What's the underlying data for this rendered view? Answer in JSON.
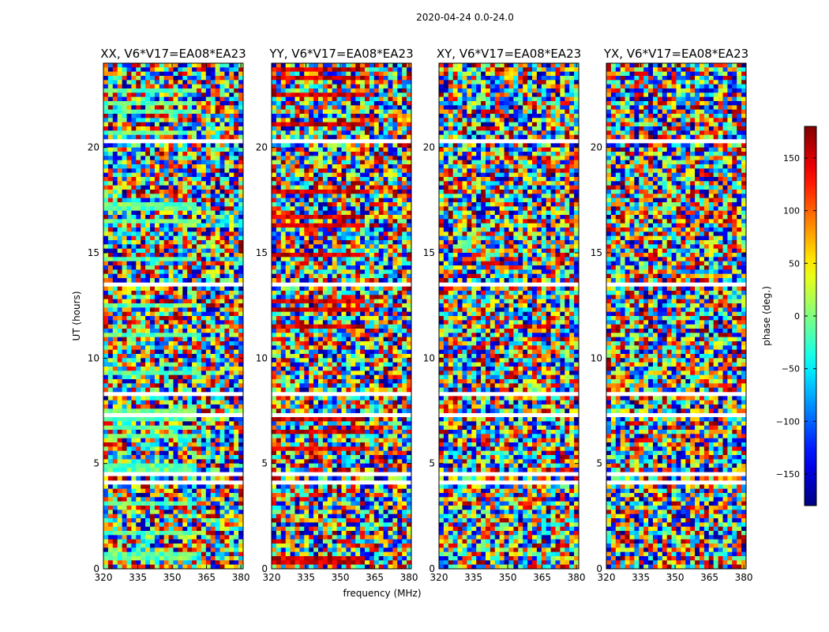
{
  "chart_data": {
    "type": "heatmap",
    "suptitle": "2020-04-24 0.0-24.0",
    "xlabel": "frequency (MHz)",
    "ylabel": "UT (hours)",
    "xlim": [
      320,
      381
    ],
    "ylim": [
      0,
      24
    ],
    "xticks": [
      "320",
      "335",
      "350",
      "365",
      "380"
    ],
    "xtick_values": [
      320,
      335,
      350,
      365,
      380
    ],
    "yticks": [
      "0",
      "5",
      "10",
      "15",
      "20"
    ],
    "ytick_values": [
      0,
      5,
      10,
      15,
      20
    ],
    "panels": [
      {
        "title": "XX, V6*V17=EA08*EA23",
        "bias_hue": -10
      },
      {
        "title": "YY, V6*V17=EA08*EA23",
        "bias_hue": 150
      },
      {
        "title": "XY, V6*V17=EA08*EA23",
        "bias_hue": null
      },
      {
        "title": "YX, V6*V17=EA08*EA23",
        "bias_hue": null
      }
    ],
    "colorbar": {
      "label": "phase (deg.)",
      "range": [
        -180,
        180
      ],
      "tick_values": [
        150,
        100,
        50,
        0,
        -50,
        -100,
        -150
      ],
      "tick_labels": [
        "150",
        "100",
        "50",
        "0",
        "−50",
        "−100",
        "−150"
      ],
      "colormap": "jet"
    },
    "flagged_ut_ranges_hours": [
      [
        3.95,
        4.15
      ],
      [
        4.45,
        4.65
      ],
      [
        7.2,
        7.45
      ],
      [
        8.2,
        8.45
      ],
      [
        13.4,
        13.6
      ],
      [
        20.3,
        20.45
      ]
    ]
  }
}
